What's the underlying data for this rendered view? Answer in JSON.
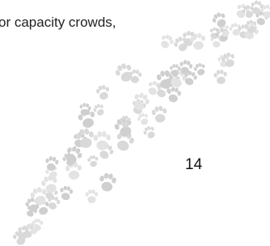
{
  "text": "or capacity crowds,",
  "page_number": "14"
}
